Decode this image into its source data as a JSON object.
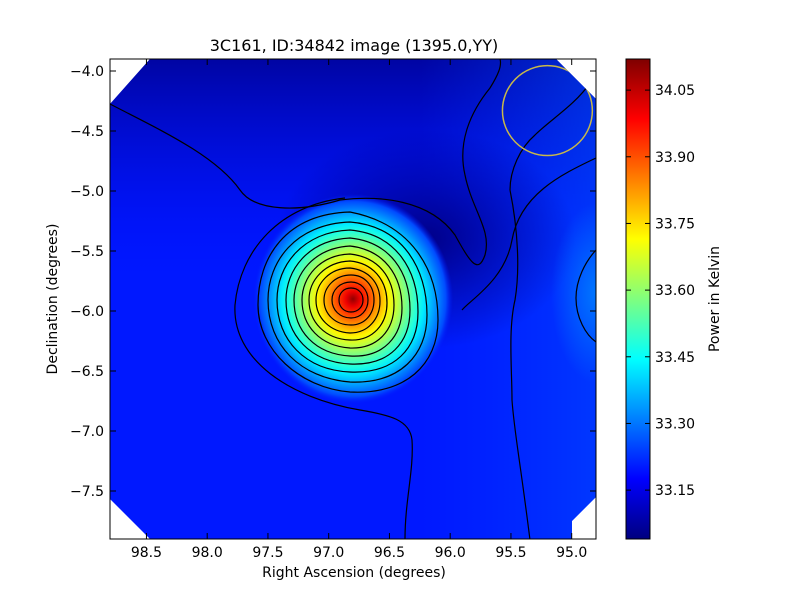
{
  "chart_data": {
    "type": "heatmap",
    "title": "3C161, ID:34842 image (1395.0,YY)",
    "xlabel": "Right Ascension (degrees)",
    "ylabel": "Declination (degrees)",
    "colorbar_label": "Power in Kelvin",
    "xlim": [
      98.8,
      94.8
    ],
    "ylim": [
      -7.9,
      -3.9
    ],
    "x_ticks": [
      98.5,
      98.0,
      97.5,
      97.0,
      96.5,
      96.0,
      95.5,
      95.0
    ],
    "x_tick_labels": [
      "98.5",
      "98.0",
      "97.5",
      "97.0",
      "96.5",
      "96.0",
      "95.5",
      "95.0"
    ],
    "y_ticks": [
      -4.0,
      -4.5,
      -5.0,
      -5.5,
      -6.0,
      -6.5,
      -7.0,
      -7.5
    ],
    "y_tick_labels": [
      "−4.0",
      "−4.5",
      "−5.0",
      "−5.5",
      "−6.0",
      "−6.5",
      "−7.0",
      "−7.5"
    ],
    "colorbar_range": [
      33.04,
      34.12
    ],
    "colorbar_ticks": [
      33.15,
      33.3,
      33.45,
      33.6,
      33.75,
      33.9,
      34.05
    ],
    "colorbar_tick_labels": [
      "33.15",
      "33.30",
      "33.45",
      "33.60",
      "33.75",
      "33.90",
      "34.05"
    ],
    "colormap": "jet",
    "colormap_stops": [
      "#00007f",
      "#0000ff",
      "#007fff",
      "#00ffff",
      "#7fff7f",
      "#ffff00",
      "#ff7f00",
      "#ff0000",
      "#7f0000"
    ],
    "background_level": 33.2,
    "peak": {
      "ra": 96.8,
      "dec": -5.9,
      "value": 34.1
    },
    "minimum_region": {
      "ra": 96.2,
      "dec": -5.4,
      "value": 33.05
    },
    "secondary_bright_region": {
      "ra": 94.8,
      "dec": -5.85,
      "value": 33.3
    },
    "beam_circle": {
      "ra": 95.2,
      "dec": -4.33,
      "radius_deg": 0.37,
      "color": "#c8b84a"
    },
    "contour_color": "#000000"
  }
}
